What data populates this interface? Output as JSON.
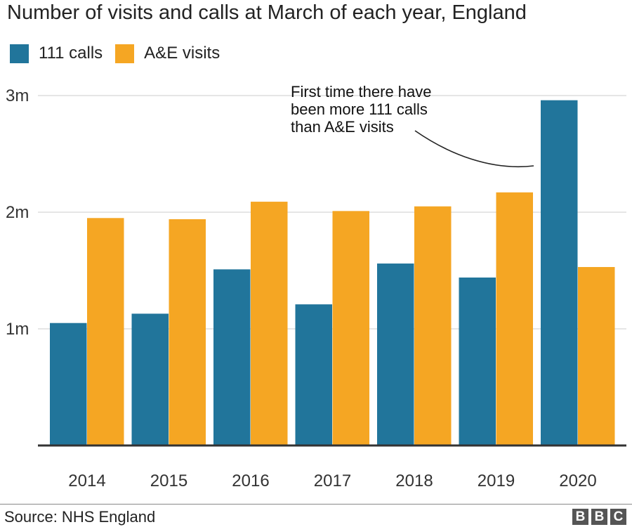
{
  "header": {
    "title": "Number of visits and calls at March of each year, England"
  },
  "colors": {
    "calls": "#21759b",
    "visits": "#f5a623"
  },
  "chart_data": {
    "type": "bar",
    "categories": [
      "2014",
      "2015",
      "2016",
      "2017",
      "2018",
      "2019",
      "2020"
    ],
    "series": [
      {
        "name": "111 calls",
        "values": [
          1.05,
          1.13,
          1.51,
          1.21,
          1.56,
          1.44,
          2.96
        ]
      },
      {
        "name": "A&E visits",
        "values": [
          1.95,
          1.94,
          2.09,
          2.01,
          2.05,
          2.17,
          1.53
        ]
      }
    ],
    "ylim": [
      0,
      3
    ],
    "y_ticks": [
      {
        "value": 1,
        "label": "1m"
      },
      {
        "value": 2,
        "label": "2m"
      },
      {
        "value": 3,
        "label": "3m"
      }
    ],
    "grid": true,
    "legend_position": "top-left",
    "annotation": {
      "lines": [
        "First time there have",
        "been more 111 calls",
        "than A&E visits"
      ]
    }
  },
  "footer": {
    "source": "Source: NHS England",
    "logo": [
      "B",
      "B",
      "C"
    ]
  }
}
